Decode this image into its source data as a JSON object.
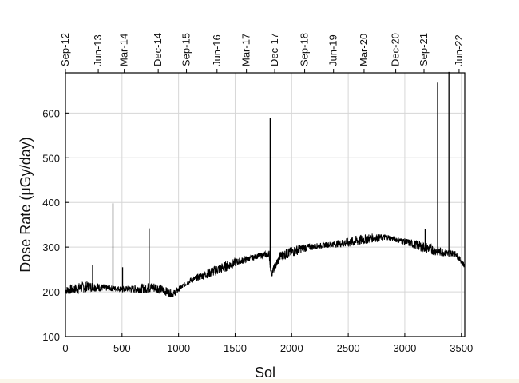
{
  "chart_data": {
    "type": "line",
    "xlabel": "Sol",
    "ylabel": "Dose Rate (μGy/day)",
    "xlim": [
      0,
      3530
    ],
    "ylim": [
      100,
      690
    ],
    "x_ticks": [
      0,
      500,
      1000,
      1500,
      2000,
      2500,
      3000,
      3500
    ],
    "y_ticks": [
      100,
      200,
      300,
      400,
      500,
      600
    ],
    "grid": true,
    "top_axis": {
      "tick_labels": [
        "Sep-12",
        "Jun-13",
        "Mar-14",
        "Dec-14",
        "Sep-15",
        "Jun-16",
        "Mar-17",
        "Dec-17",
        "Sep-18",
        "Jun-19",
        "Mar-20",
        "Dec-20",
        "Sep-21",
        "Jun-22"
      ],
      "tick_sols": [
        0,
        290,
        520,
        820,
        1070,
        1340,
        1600,
        1850,
        2115,
        2370,
        2640,
        2920,
        3170,
        3480
      ]
    },
    "baseline": {
      "x": [
        0,
        200,
        400,
        600,
        800,
        950,
        1100,
        1300,
        1500,
        1700,
        1800,
        1820,
        1900,
        2100,
        2300,
        2500,
        2700,
        2850,
        3000,
        3200,
        3300,
        3450,
        3530
      ],
      "y": [
        203,
        212,
        208,
        206,
        210,
        195,
        225,
        245,
        265,
        280,
        285,
        240,
        280,
        298,
        305,
        310,
        320,
        322,
        312,
        298,
        290,
        285,
        258
      ]
    },
    "spikes": [
      {
        "x": 240,
        "y": 260
      },
      {
        "x": 420,
        "y": 398
      },
      {
        "x": 505,
        "y": 255
      },
      {
        "x": 740,
        "y": 342
      },
      {
        "x": 1810,
        "y": 588
      },
      {
        "x": 3180,
        "y": 340
      },
      {
        "x": 3290,
        "y": 668
      },
      {
        "x": 3390,
        "y": 692
      }
    ],
    "line_color": "#000000"
  }
}
